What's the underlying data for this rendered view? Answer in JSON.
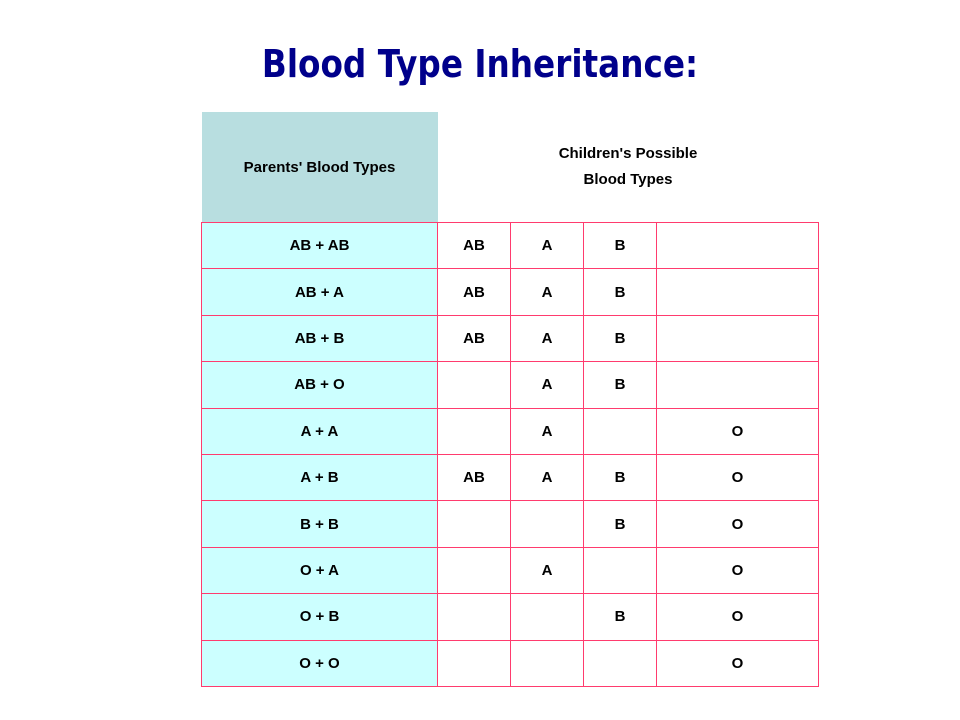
{
  "title": "Blood Type Inheritance:",
  "table": {
    "header_parents": "Parents' Blood Types",
    "header_children_line1": "Children's Possible",
    "header_children_line2": "Blood Types",
    "rows": [
      {
        "parents": "AB + AB",
        "c1": "AB",
        "c2": "A",
        "c3": "B",
        "c4": ""
      },
      {
        "parents": "AB + A",
        "c1": "AB",
        "c2": "A",
        "c3": "B",
        "c4": ""
      },
      {
        "parents": "AB + B",
        "c1": "AB",
        "c2": "A",
        "c3": "B",
        "c4": ""
      },
      {
        "parents": "AB + O",
        "c1": "",
        "c2": "A",
        "c3": "B",
        "c4": ""
      },
      {
        "parents": "A + A",
        "c1": "",
        "c2": "A",
        "c3": "",
        "c4": "O"
      },
      {
        "parents": "A + B",
        "c1": "AB",
        "c2": "A",
        "c3": "B",
        "c4": "O"
      },
      {
        "parents": "B + B",
        "c1": "",
        "c2": "",
        "c3": "B",
        "c4": "O"
      },
      {
        "parents": "O + A",
        "c1": "",
        "c2": "A",
        "c3": "",
        "c4": "O"
      },
      {
        "parents": "O + B",
        "c1": "",
        "c2": "",
        "c3": "B",
        "c4": "O"
      },
      {
        "parents": "O + O",
        "c1": "",
        "c2": "",
        "c3": "",
        "c4": "O"
      }
    ]
  },
  "colors": {
    "title": "#00008b",
    "header_bg": "#b8dee0",
    "parent_cell_bg": "#ccffff",
    "border": "#ff3b6e"
  }
}
